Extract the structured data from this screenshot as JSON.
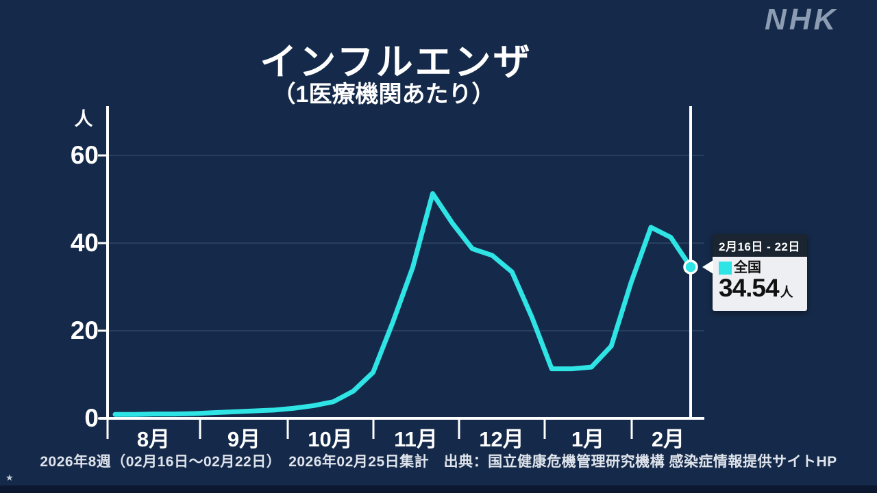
{
  "branding": {
    "logo": "NHK"
  },
  "chart_data": {
    "type": "line",
    "title": "インフルエンザ",
    "subtitle": "（1医療機関あたり）",
    "unit": "人",
    "x_tick_labels": [
      "8月",
      "9月",
      "10月",
      "11月",
      "12月",
      "1月",
      "2月"
    ],
    "y_ticks": [
      0,
      20,
      40,
      60
    ],
    "ylim": [
      0,
      65
    ],
    "grid": "horizontal",
    "legend_position": "tooltip-on-last-point",
    "series": [
      {
        "name": "全国",
        "color": "#2EE4E4",
        "cadence": "weekly",
        "values": [
          0.9,
          0.9,
          1.0,
          1.0,
          1.1,
          1.3,
          1.5,
          1.7,
          1.9,
          2.3,
          2.9,
          3.8,
          6.2,
          10.5,
          22.0,
          34.5,
          51.3,
          44.5,
          38.7,
          37.2,
          33.4,
          23.1,
          11.3,
          11.3,
          11.7,
          16.5,
          31.0,
          43.6,
          41.3,
          34.54
        ]
      }
    ],
    "highlight_last_point": true,
    "colors": {
      "background": "#152A4A",
      "axis": "#FFFFFF",
      "gridline": "#27405F",
      "marker_line": "#FFFFFF"
    }
  },
  "tooltip": {
    "period": "2月16日 - 22日",
    "series_label": "全国",
    "value": "34.54",
    "unit": "人"
  },
  "footer": {
    "caption": "2026年8週（02月16日～02月22日）　2026年02月25日集計　出典：国立健康危機管理研究機構 感染症情報提供サイトHP",
    "star": "★"
  }
}
